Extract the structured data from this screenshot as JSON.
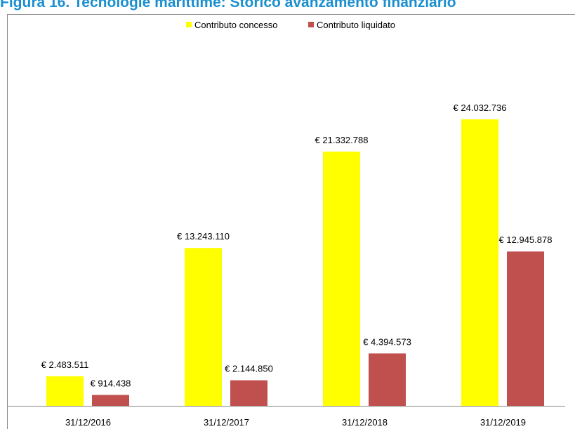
{
  "chart_data": {
    "type": "bar",
    "title": "Figura 16. Tecnologie marittime: Storico avanzamento finanziario",
    "categories": [
      "31/12/2016",
      "31/12/2017",
      "31/12/2018",
      "31/12/2019"
    ],
    "series": [
      {
        "name": "Contributo concesso",
        "color": "#ffff00",
        "values": [
          2483511,
          13243110,
          21332788,
          24032736
        ],
        "value_labels": [
          "€ 2.483.511",
          "€ 13.243.110",
          "€ 21.332.788",
          "€ 24.032.736"
        ]
      },
      {
        "name": "Contributo liquidato",
        "color": "#c0504d",
        "values": [
          914438,
          2144850,
          4394573,
          12945878
        ],
        "value_labels": [
          "€ 914.438",
          "€ 2.144.850",
          "€ 4.394.573",
          "€ 12.945.878"
        ]
      }
    ],
    "legend": "top"
  }
}
